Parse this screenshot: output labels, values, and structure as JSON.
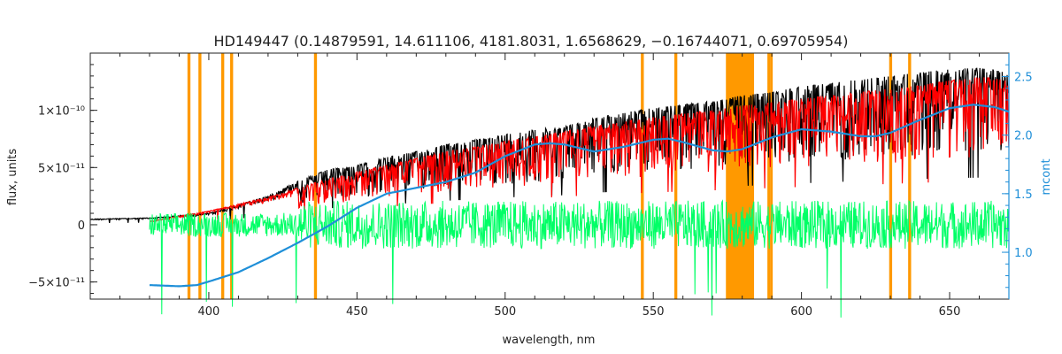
{
  "chart_data": {
    "type": "line",
    "title": "HD149447    (0.14879591, 14.611106, 4181.8031, 1.6568629, −0.16744071, 0.69705954)",
    "xlabel": "wavelength, nm",
    "ylabel": "flux, units",
    "y2label": "mcont",
    "xlim": [
      360,
      670
    ],
    "ylim": [
      -6.5e-11,
      1.5e-10
    ],
    "y2lim": [
      0.6,
      2.7
    ],
    "x_ticks": [
      400,
      450,
      500,
      550,
      600,
      650
    ],
    "x_tick_labels": [
      "400",
      "450",
      "500",
      "550",
      "600",
      "650"
    ],
    "y_ticks": [
      -5e-11,
      0,
      5e-11,
      1e-10
    ],
    "y_tick_labels": [
      "−5×10⁻¹¹",
      "0",
      "5×10⁻¹¹",
      "1×10⁻¹⁰"
    ],
    "y2_ticks": [
      1.0,
      1.5,
      2.0,
      2.5
    ],
    "y2_tick_labels": [
      "1.0",
      "1.5",
      "2.0",
      "2.5"
    ],
    "masked_regions": [
      [
        392.8,
        393.8
      ],
      [
        396.5,
        397.5
      ],
      [
        404.2,
        405.2
      ],
      [
        407.2,
        408.2
      ],
      [
        435.5,
        436.5
      ],
      [
        545.8,
        546.8
      ],
      [
        557.1,
        558.1
      ],
      [
        574.5,
        584.0
      ],
      [
        588.5,
        589.4
      ],
      [
        589.4,
        590.3
      ],
      [
        629.6,
        630.6
      ],
      [
        636.0,
        637.0
      ]
    ],
    "series": [
      {
        "color": "#000000",
        "x": [
          360,
          380,
          400,
          420,
          430,
          440,
          450,
          460,
          470,
          480,
          490,
          500,
          510,
          520,
          530,
          540,
          550,
          560,
          570,
          580,
          590,
          600,
          610,
          620,
          630,
          640,
          650,
          660,
          670
        ],
        "y": [
          5e-12,
          6e-12,
          1e-11,
          2.5e-11,
          3.8e-11,
          4.8e-11,
          5.2e-11,
          5.9e-11,
          6.4e-11,
          7e-11,
          7.4e-11,
          7.9e-11,
          8.3e-11,
          8.6e-11,
          9.3e-11,
          9.8e-11,
          1.02e-10,
          1.05e-10,
          1.08e-10,
          1.13e-10,
          1.16e-10,
          1.21e-10,
          1.24e-10,
          1.27e-10,
          1.3e-10,
          1.33e-10,
          1.36e-10,
          1.37e-10,
          1.35e-10
        ]
      },
      {
        "color": "#ff0000",
        "x": [
          380,
          400,
          420,
          430,
          440,
          450,
          460,
          470,
          480,
          490,
          500,
          510,
          520,
          530,
          540,
          550,
          560,
          570,
          580,
          590,
          600,
          610,
          620,
          630,
          640,
          650,
          660,
          670
        ],
        "y": [
          3e-12,
          1.2e-11,
          2.4e-11,
          3.2e-11,
          4e-11,
          4.6e-11,
          5.2e-11,
          5.8e-11,
          6.4e-11,
          6.8e-11,
          7.3e-11,
          7.7e-11,
          8.2e-11,
          8.6e-11,
          9e-11,
          9.4e-11,
          9.7e-11,
          1e-10,
          1.04e-10,
          1.07e-10,
          1.1e-10,
          1.13e-10,
          1.16e-10,
          1.19e-10,
          1.22e-10,
          1.26e-10,
          1.29e-10,
          1.28e-10
        ]
      },
      {
        "color": "#00ff66",
        "x": [
          380,
          400,
          420,
          440,
          460,
          480,
          500,
          520,
          540,
          560,
          580,
          600,
          620,
          640,
          660,
          670
        ],
        "y": [
          0,
          0,
          0,
          0,
          0,
          0,
          0,
          0,
          0,
          0,
          0,
          0,
          0,
          0,
          0,
          0
        ]
      },
      {
        "color": "#1f8fd8",
        "x": [
          380,
          390,
          396,
          400,
          410,
          420,
          430,
          440,
          450,
          460,
          470,
          480,
          490,
          500,
          510,
          515,
          520,
          530,
          540,
          550,
          555,
          560,
          570,
          575,
          580,
          590,
          600,
          610,
          620,
          625,
          630,
          640,
          650,
          658,
          665,
          670
        ],
        "y": [
          0.72,
          0.71,
          0.72,
          0.75,
          0.83,
          0.95,
          1.08,
          1.22,
          1.38,
          1.5,
          1.55,
          1.6,
          1.68,
          1.82,
          1.92,
          1.93,
          1.92,
          1.86,
          1.9,
          1.96,
          1.97,
          1.94,
          1.87,
          1.86,
          1.88,
          1.98,
          2.05,
          2.03,
          1.99,
          1.99,
          2.02,
          2.13,
          2.23,
          2.26,
          2.24,
          2.2
        ]
      }
    ],
    "colors": {
      "mask": "#ff9900",
      "highlight": "#ffff00",
      "axis": "#222222",
      "right_axis": "#1f8fd8"
    }
  }
}
